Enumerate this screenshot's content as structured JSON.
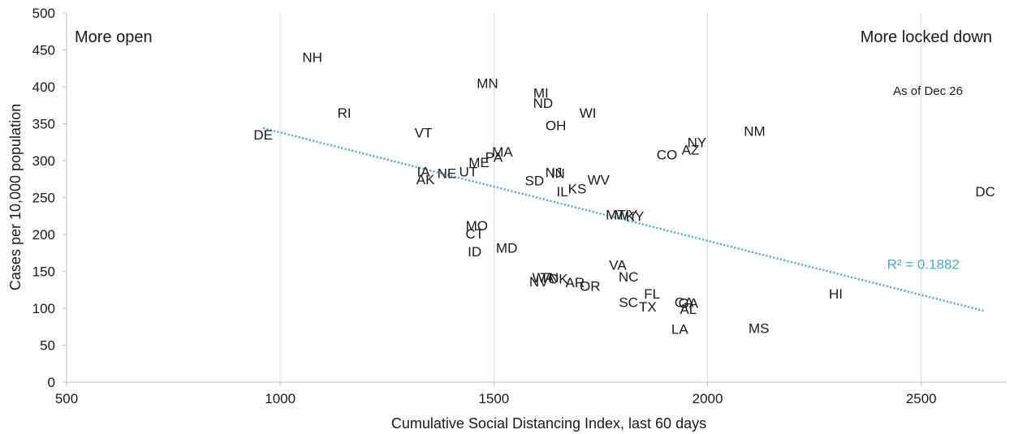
{
  "chart_data": {
    "type": "scatter",
    "xlabel": "Cumulative Social Distancing Index, last 60 days",
    "ylabel": "Cases per 10,000 population",
    "xlim": [
      500,
      2700
    ],
    "ylim": [
      0,
      500
    ],
    "x_ticks": [
      500,
      1000,
      1500,
      2000,
      2500
    ],
    "y_ticks": [
      0,
      50,
      100,
      150,
      200,
      250,
      300,
      350,
      400,
      450,
      500
    ],
    "grid": "vertical",
    "annotations": {
      "left": "More open",
      "right": "More locked down",
      "date_note": "As of Dec 26"
    },
    "trendline": {
      "label": "R² = 0.1882",
      "color": "#4bacc6",
      "x": [
        960,
        2650
      ],
      "y": [
        344,
        96
      ]
    },
    "points": [
      {
        "label": "NH",
        "x": 1075,
        "y": 440
      },
      {
        "label": "MN",
        "x": 1485,
        "y": 405
      },
      {
        "label": "MI",
        "x": 1610,
        "y": 392
      },
      {
        "label": "ND",
        "x": 1615,
        "y": 378
      },
      {
        "label": "RI",
        "x": 1150,
        "y": 365
      },
      {
        "label": "WI",
        "x": 1720,
        "y": 365
      },
      {
        "label": "OH",
        "x": 1645,
        "y": 348
      },
      {
        "label": "NM",
        "x": 2110,
        "y": 340
      },
      {
        "label": "DE",
        "x": 960,
        "y": 335
      },
      {
        "label": "VT",
        "x": 1335,
        "y": 338
      },
      {
        "label": "NY",
        "x": 1975,
        "y": 325
      },
      {
        "label": "AZ",
        "x": 1960,
        "y": 315
      },
      {
        "label": "MA",
        "x": 1520,
        "y": 312
      },
      {
        "label": "PA",
        "x": 1500,
        "y": 305
      },
      {
        "label": "CO",
        "x": 1905,
        "y": 308
      },
      {
        "label": "ME",
        "x": 1465,
        "y": 298
      },
      {
        "label": "UT",
        "x": 1440,
        "y": 285
      },
      {
        "label": "NE",
        "x": 1390,
        "y": 283
      },
      {
        "label": "IA",
        "x": 1335,
        "y": 285
      },
      {
        "label": "AK",
        "x": 1340,
        "y": 275
      },
      {
        "label": "NJ",
        "x": 1640,
        "y": 284
      },
      {
        "label": "IN",
        "x": 1650,
        "y": 283
      },
      {
        "label": "SD",
        "x": 1595,
        "y": 273
      },
      {
        "label": "WV",
        "x": 1745,
        "y": 274
      },
      {
        "label": "KS",
        "x": 1695,
        "y": 262
      },
      {
        "label": "IL",
        "x": 1660,
        "y": 258
      },
      {
        "label": "DC",
        "x": 2650,
        "y": 258
      },
      {
        "label": "MT",
        "x": 1785,
        "y": 227
      },
      {
        "label": "WY",
        "x": 1810,
        "y": 227
      },
      {
        "label": "KY",
        "x": 1830,
        "y": 225
      },
      {
        "label": "MO",
        "x": 1460,
        "y": 212
      },
      {
        "label": "CT",
        "x": 1455,
        "y": 201
      },
      {
        "label": "MD",
        "x": 1530,
        "y": 182
      },
      {
        "label": "ID",
        "x": 1455,
        "y": 177
      },
      {
        "label": "VA",
        "x": 1790,
        "y": 159
      },
      {
        "label": "NC",
        "x": 1815,
        "y": 143
      },
      {
        "label": "WA",
        "x": 1615,
        "y": 142
      },
      {
        "label": "TN",
        "x": 1630,
        "y": 142
      },
      {
        "label": "OK",
        "x": 1650,
        "y": 140
      },
      {
        "label": "NV",
        "x": 1605,
        "y": 136
      },
      {
        "label": "AR",
        "x": 1690,
        "y": 135
      },
      {
        "label": "OR",
        "x": 1725,
        "y": 130
      },
      {
        "label": "HI",
        "x": 2300,
        "y": 120
      },
      {
        "label": "FL",
        "x": 1870,
        "y": 120
      },
      {
        "label": "CA",
        "x": 1945,
        "y": 108
      },
      {
        "label": "GA",
        "x": 1955,
        "y": 107
      },
      {
        "label": "SC",
        "x": 1815,
        "y": 108
      },
      {
        "label": "AL",
        "x": 1955,
        "y": 99
      },
      {
        "label": "TX",
        "x": 1860,
        "y": 102
      },
      {
        "label": "MS",
        "x": 2120,
        "y": 73
      },
      {
        "label": "LA",
        "x": 1935,
        "y": 72
      }
    ]
  }
}
